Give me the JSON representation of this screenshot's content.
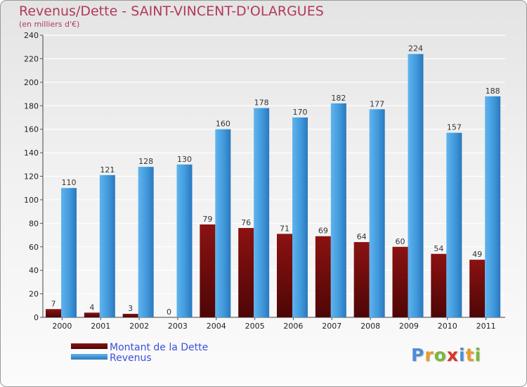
{
  "chart_data": {
    "type": "bar",
    "title": "Revenus/Dette - SAINT-VINCENT-D'OLARGUES",
    "subtitle": "(en milliers d'€)",
    "categories": [
      "2000",
      "2001",
      "2002",
      "2003",
      "2004",
      "2005",
      "2006",
      "2007",
      "2008",
      "2009",
      "2010",
      "2011"
    ],
    "series": [
      {
        "name": "Montant de la Dette",
        "color": "#8b1212",
        "values": [
          7,
          4,
          3,
          0,
          79,
          76,
          71,
          69,
          64,
          60,
          54,
          49
        ]
      },
      {
        "name": "Revenus",
        "color": "#4ba3e3",
        "values": [
          110,
          121,
          128,
          130,
          160,
          178,
          170,
          182,
          177,
          224,
          157,
          188
        ]
      }
    ],
    "ylim": [
      0,
      240
    ],
    "yticks": [
      0,
      20,
      40,
      60,
      80,
      100,
      120,
      140,
      160,
      180,
      200,
      220,
      240
    ],
    "grid": true,
    "legend_position": "bottom-left"
  },
  "legend": {
    "items": [
      {
        "label": "Montant de la Dette",
        "color": "#8b1212"
      },
      {
        "label": "Revenus",
        "color": "#4ba3e3"
      }
    ]
  },
  "brand": {
    "letters": [
      "P",
      "r",
      "o",
      "x",
      "i",
      "t",
      "i"
    ],
    "colors": [
      "#4a8ed8",
      "#e89a2a",
      "#7ab83a",
      "#d8332a",
      "#4a8ed8",
      "#e89a2a",
      "#7ab83a"
    ]
  }
}
